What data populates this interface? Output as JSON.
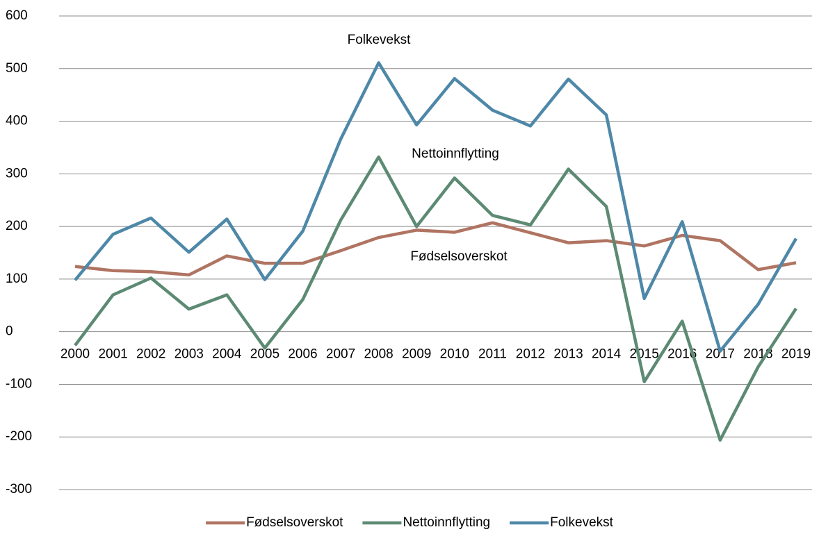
{
  "chart_data": {
    "type": "line",
    "categories": [
      "2000",
      "2001",
      "2002",
      "2003",
      "2004",
      "2005",
      "2006",
      "2007",
      "2008",
      "2009",
      "2010",
      "2011",
      "2012",
      "2013",
      "2014",
      "2015",
      "2016",
      "2017",
      "2018",
      "2019"
    ],
    "series": [
      {
        "name": "Fødselsoverskot",
        "color": "#b07462",
        "values": [
          124,
          116,
          114,
          108,
          144,
          130,
          130,
          154,
          179,
          193,
          189,
          207,
          188,
          169,
          173,
          163,
          183,
          173,
          118,
          131
        ]
      },
      {
        "name": "Nettoinnflytting",
        "color": "#5c8a73",
        "values": [
          -26,
          70,
          102,
          43,
          70,
          -31,
          61,
          212,
          332,
          200,
          292,
          221,
          203,
          309,
          238,
          -95,
          20,
          -206,
          -67,
          44
        ]
      },
      {
        "name": "Folkevekst",
        "color": "#4e88a8",
        "values": [
          98,
          185,
          216,
          151,
          214,
          99,
          191,
          366,
          511,
          393,
          481,
          421,
          391,
          480,
          412,
          63,
          209,
          -37,
          52,
          177
        ]
      }
    ],
    "annotations": [
      "Folkevekst",
      "Nettoinnflytting",
      "Fødselsoverskot"
    ],
    "ylim": [
      -300,
      600
    ],
    "yticks": [
      -300,
      -200,
      -100,
      0,
      100,
      200,
      300,
      400,
      500,
      600
    ],
    "grid": true,
    "legend": "bottom"
  }
}
